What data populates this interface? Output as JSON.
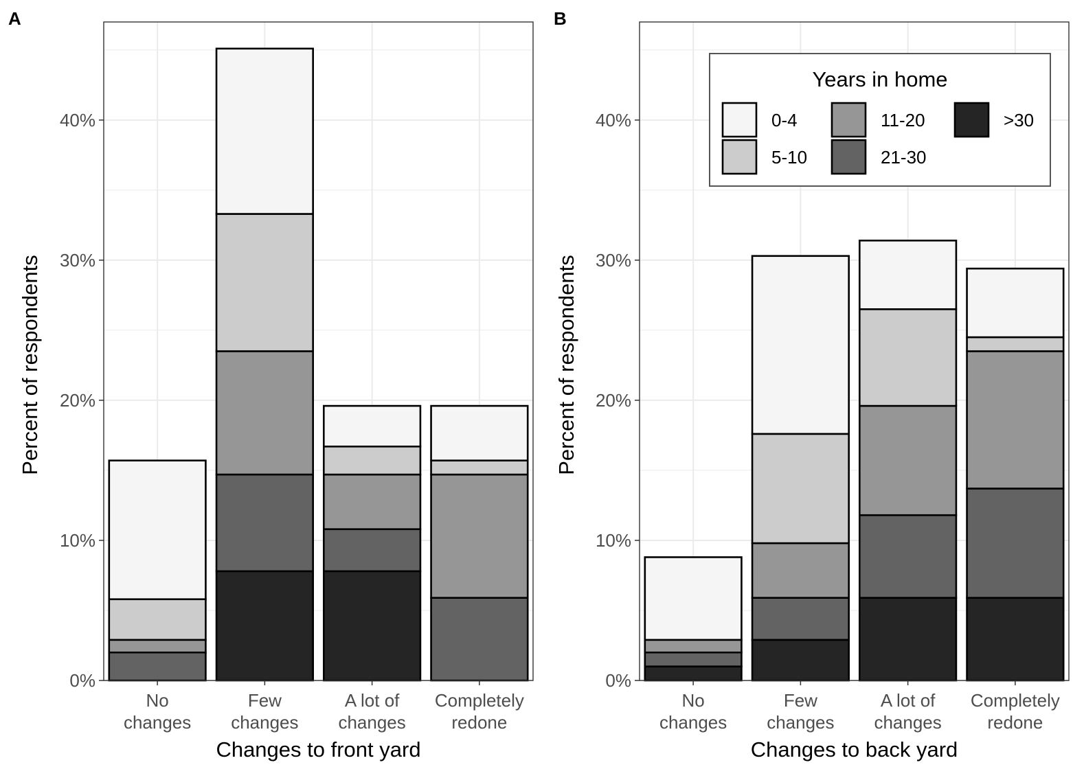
{
  "chart_data": [
    {
      "type": "bar",
      "stacked": true,
      "panel_label": "A",
      "xlabel": "Changes to front yard",
      "ylabel": "Percent of respondents",
      "ylim": [
        0,
        47
      ],
      "yticks": [
        "0%",
        "10%",
        "20%",
        "30%",
        "40%"
      ],
      "grid": true,
      "categories": [
        [
          "No",
          "changes"
        ],
        [
          "Few",
          "changes"
        ],
        [
          "A lot of",
          "changes"
        ],
        [
          "Completely",
          "redone"
        ]
      ],
      "series": [
        {
          "name": ">30",
          "values": [
            0,
            7.8,
            7.8,
            0
          ]
        },
        {
          "name": "21-30",
          "values": [
            2.0,
            6.9,
            3.0,
            5.9
          ]
        },
        {
          "name": "11-20",
          "values": [
            0.9,
            8.8,
            3.9,
            8.8
          ]
        },
        {
          "name": "5-10",
          "values": [
            2.9,
            9.8,
            2.0,
            1.0
          ]
        },
        {
          "name": "0-4",
          "values": [
            9.9,
            11.8,
            2.9,
            3.9
          ]
        }
      ]
    },
    {
      "type": "bar",
      "stacked": true,
      "panel_label": "B",
      "xlabel": "Changes to back yard",
      "ylabel": "Percent of respondents",
      "ylim": [
        0,
        47
      ],
      "yticks": [
        "0%",
        "10%",
        "20%",
        "30%",
        "40%"
      ],
      "grid": true,
      "categories": [
        [
          "No",
          "changes"
        ],
        [
          "Few",
          "changes"
        ],
        [
          "A lot of",
          "changes"
        ],
        [
          "Completely",
          "redone"
        ]
      ],
      "series": [
        {
          "name": ">30",
          "values": [
            1.0,
            2.9,
            5.9,
            5.9
          ]
        },
        {
          "name": "21-30",
          "values": [
            1.0,
            3.0,
            5.9,
            7.8
          ]
        },
        {
          "name": "11-20",
          "values": [
            0.9,
            3.9,
            7.8,
            9.8
          ]
        },
        {
          "name": "5-10",
          "values": [
            0,
            7.8,
            6.9,
            1.0
          ]
        },
        {
          "name": "0-4",
          "values": [
            5.9,
            12.7,
            4.9,
            4.9
          ]
        }
      ],
      "legend": {
        "title": "Years in home",
        "placement": "top-right",
        "entries": [
          "0-4",
          "5-10",
          "11-20",
          "21-30",
          ">30"
        ]
      }
    }
  ],
  "colors": {
    "0-4": "#f5f5f5",
    "5-10": "#cccccc",
    "11-20": "#969696",
    "21-30": "#636363",
    ">30": "#252525",
    "grid": "#ebebeb",
    "axis": "#333333"
  }
}
